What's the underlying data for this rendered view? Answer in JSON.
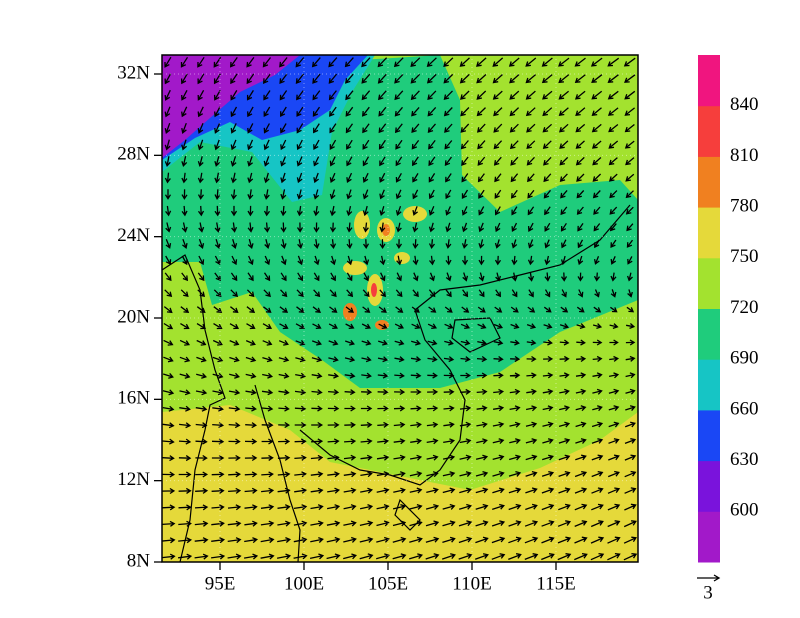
{
  "map": {
    "lat_ticks": [
      {
        "value": 32,
        "label": "32N"
      },
      {
        "value": 28,
        "label": "28N"
      },
      {
        "value": 24,
        "label": "24N"
      },
      {
        "value": 20,
        "label": "20N"
      },
      {
        "value": 16,
        "label": "16N"
      },
      {
        "value": 12,
        "label": "12N"
      },
      {
        "value": 8,
        "label": "8N"
      }
    ],
    "lon_ticks": [
      {
        "value": 95,
        "label": "95E"
      },
      {
        "value": 100,
        "label": "100E"
      },
      {
        "value": 105,
        "label": "105E"
      },
      {
        "value": 110,
        "label": "110E"
      },
      {
        "value": 115,
        "label": "115E"
      }
    ],
    "colorbar": {
      "levels": [
        600,
        630,
        660,
        690,
        720,
        750,
        780,
        810,
        840
      ],
      "colors": [
        "#a219c9",
        "#7a13dc",
        "#1a47f5",
        "#16c5c5",
        "#1fcc7c",
        "#a3e22f",
        "#e5d93a",
        "#f08020",
        "#f63e3c",
        "#f0157f"
      ]
    },
    "vector_reference": {
      "label": "3"
    }
  }
}
